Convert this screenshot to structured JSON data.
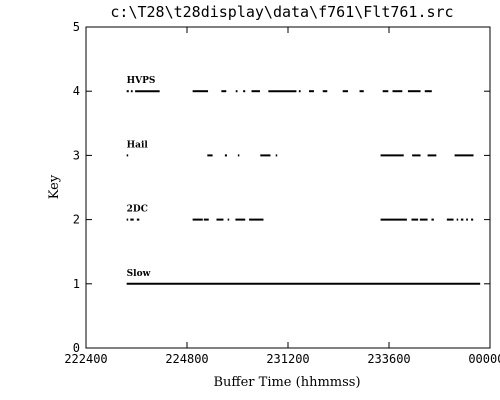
{
  "chart_data": {
    "type": "scatter",
    "title": "c:\\T28\\t28display\\data\\f761\\Flt761.src",
    "xlabel": "Buffer Time (hhmmss)",
    "ylabel": "Key",
    "xlim": [
      "222400",
      "000000"
    ],
    "ylim": [
      0,
      5
    ],
    "x_ticks": [
      "222400",
      "224800",
      "231200",
      "233600",
      "000000"
    ],
    "y_ticks": [
      "0",
      "1",
      "2",
      "3",
      "4",
      "5"
    ],
    "grid": false,
    "series": [
      {
        "name": "Slow",
        "y": 1,
        "segments": [
          [
            "223340",
            "235740"
          ]
        ]
      },
      {
        "name": "2DC",
        "y": 2,
        "segments": [
          [
            "223340",
            "223355"
          ],
          [
            "223432",
            "223520"
          ],
          [
            "223605",
            "223640"
          ],
          [
            "224920",
            "225145"
          ],
          [
            "225200",
            "225310"
          ],
          [
            "225500",
            "225640"
          ],
          [
            "225740",
            "225800"
          ],
          [
            "225930",
            "230150"
          ],
          [
            "230245",
            "230610"
          ],
          [
            "233400",
            "234015"
          ],
          [
            "234120",
            "234255"
          ],
          [
            "234320",
            "234510"
          ],
          [
            "234605",
            "234640"
          ],
          [
            "234945",
            "235120"
          ],
          [
            "235205",
            "235225"
          ],
          [
            "235305",
            "235340"
          ],
          [
            "235420",
            "235445"
          ],
          [
            "235530",
            "235600"
          ]
        ]
      },
      {
        "name": "Hail",
        "y": 3,
        "segments": [
          [
            "223340",
            "223350"
          ],
          [
            "225250",
            "225405"
          ],
          [
            "225700",
            "225730"
          ],
          [
            "230005",
            "230025"
          ],
          [
            "230525",
            "230750"
          ],
          [
            "230905",
            "230925"
          ],
          [
            "233400",
            "233930"
          ],
          [
            "234130",
            "234330"
          ],
          [
            "234510",
            "234715"
          ],
          [
            "235135",
            "235605"
          ]
        ]
      },
      {
        "name": "HVPS",
        "y": 4,
        "segments": [
          [
            "223340",
            "223410"
          ],
          [
            "223440",
            "223505"
          ],
          [
            "223540",
            "224130"
          ],
          [
            "224920",
            "225300"
          ],
          [
            "225610",
            "225720"
          ],
          [
            "225935",
            "230000"
          ],
          [
            "230120",
            "230150"
          ],
          [
            "230320",
            "230520"
          ],
          [
            "230720",
            "231400"
          ],
          [
            "231435",
            "231500"
          ],
          [
            "231700",
            "231810"
          ],
          [
            "232015",
            "232120"
          ],
          [
            "232500",
            "232615"
          ],
          [
            "232900",
            "233000"
          ],
          [
            "233430",
            "233550"
          ],
          [
            "233650",
            "233910"
          ],
          [
            "234030",
            "234330"
          ],
          [
            "234430",
            "234610"
          ]
        ]
      }
    ]
  }
}
